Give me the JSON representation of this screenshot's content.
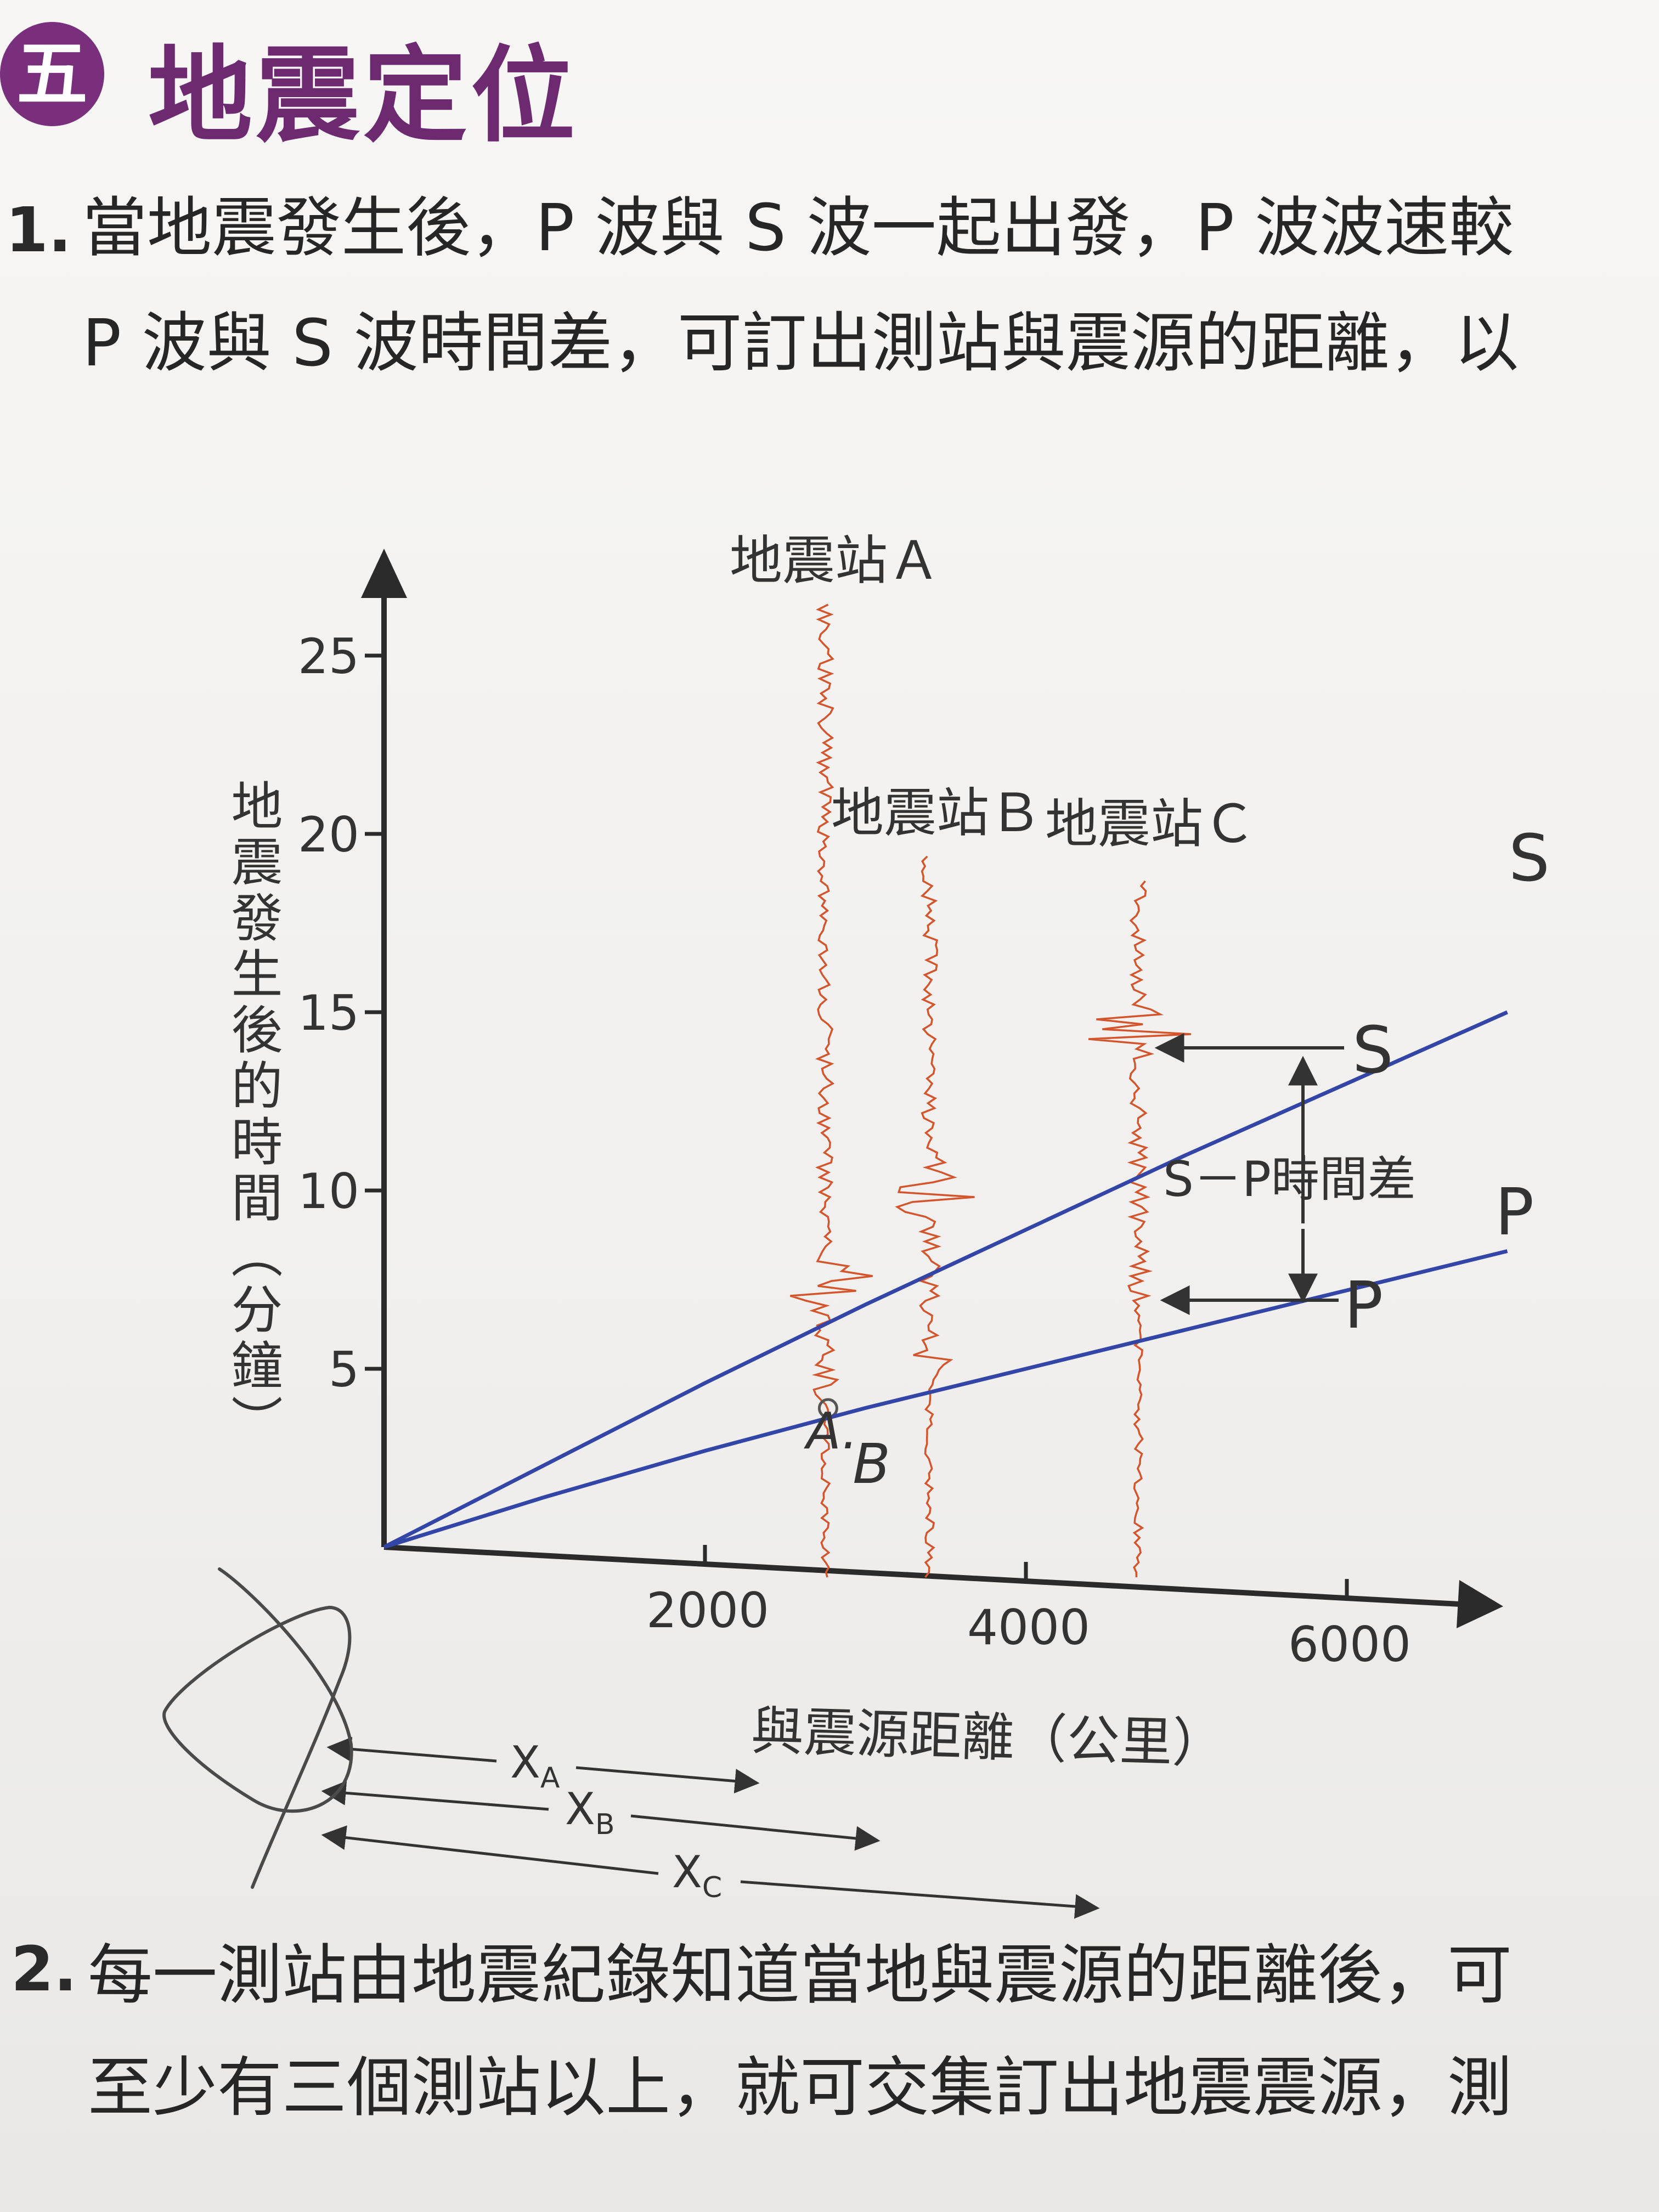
{
  "header": {
    "badge": "五",
    "title": "地震定位"
  },
  "item1": {
    "number": "1.",
    "line1": "當地震發生後，P 波與 S 波一起出發，P 波波速較",
    "line2": "P 波與 S 波時間差，可訂出測站與震源的距離，以"
  },
  "item2": {
    "number": "2.",
    "line1": "每一測站由地震紀錄知道當地與震源的距離後，可",
    "line2": "至少有三個測站以上，就可交集訂出地震震源，測"
  },
  "figure": {
    "station_a_label": "地震站Ａ",
    "station_b_label": "地震站Ｂ",
    "station_c_label": "地震站Ｃ",
    "curve_s_label": "S",
    "curve_p_label": "P",
    "arrival_s_label": "S",
    "arrival_p_label": "P",
    "sp_label": "S－P時間差",
    "xa_label": "X",
    "xa_sub": "A",
    "xb_label": "X",
    "xb_sub": "B",
    "xc_label": "X",
    "xc_sub": "C",
    "hand_b": "B",
    "hand_a": "A."
  },
  "chart_data": {
    "type": "line",
    "xlabel": "與震源距離（公里）",
    "ylabel": "地震發生後的時間（分鐘）",
    "xlim": [
      0,
      7000
    ],
    "ylim": [
      0,
      27
    ],
    "xticks": [
      2000,
      4000,
      6000
    ],
    "yticks": [
      5,
      10,
      15,
      20,
      25
    ],
    "series": [
      {
        "name": "S",
        "x": [
          0,
          1000,
          2000,
          3000,
          4000,
          5000,
          6000,
          7000
        ],
        "values": [
          0,
          2.3,
          4.6,
          6.8,
          8.9,
          11.0,
          13.0,
          15.0
        ]
      },
      {
        "name": "P",
        "x": [
          0,
          1000,
          2000,
          3000,
          4000,
          5000,
          6000,
          7000
        ],
        "values": [
          0,
          1.4,
          2.7,
          3.9,
          5.0,
          6.1,
          7.2,
          8.3
        ]
      }
    ],
    "stations": [
      {
        "name": "A",
        "distance": 2750,
        "p_arrival": 4.2,
        "s_arrival": 7.4
      },
      {
        "name": "B",
        "distance": 3400,
        "p_arrival": 5.3,
        "s_arrival": 10.0
      },
      {
        "name": "C",
        "distance": 4700,
        "p_arrival": 7.3,
        "s_arrival": 14.5
      }
    ],
    "colors": {
      "curves": "#3346a8",
      "seismogram": "#d4542c",
      "axis": "#2b2b2b"
    }
  }
}
